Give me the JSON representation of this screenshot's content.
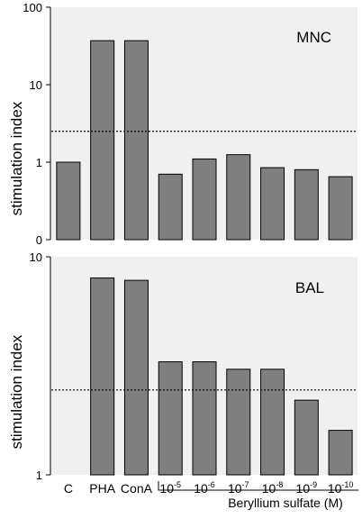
{
  "chart_data": {
    "type": "bar",
    "categories": [
      "C",
      "PHA",
      "ConA",
      "10-5",
      "10-6",
      "10-7",
      "10-8",
      "10-9",
      "10-10"
    ],
    "category_labels": [
      {
        "base": "C",
        "sup": ""
      },
      {
        "base": "PHA",
        "sup": ""
      },
      {
        "base": "ConA",
        "sup": ""
      },
      {
        "base": "10",
        "sup": "-5"
      },
      {
        "base": "10",
        "sup": "-6"
      },
      {
        "base": "10",
        "sup": "-7"
      },
      {
        "base": "10",
        "sup": "-8"
      },
      {
        "base": "10",
        "sup": "-9"
      },
      {
        "base": "10",
        "sup": "-10"
      }
    ],
    "group_label": "Beryllium sulfate (M)",
    "panels": [
      {
        "panel_label": "MNC",
        "ylabel": "stimulation index",
        "yscale": "log",
        "ylim": [
          0,
          100
        ],
        "yticks": [
          {
            "label": "100",
            "value": 100
          },
          {
            "label": "10",
            "value": 10
          },
          {
            "label": "1",
            "value": 1
          },
          {
            "label": "0",
            "value": 0
          }
        ],
        "values": [
          1.0,
          37,
          37,
          0.7,
          1.1,
          1.25,
          0.85,
          0.8,
          0.65
        ],
        "reference_line": 2.5
      },
      {
        "panel_label": "BAL",
        "ylabel": "stimulation index",
        "yscale": "log",
        "ylim": [
          1,
          10
        ],
        "yticks": [
          {
            "label": "10",
            "value": 10
          },
          {
            "label": "1",
            "value": 1
          }
        ],
        "values": [
          null,
          8.0,
          7.8,
          3.3,
          3.3,
          3.05,
          3.05,
          2.2,
          1.6
        ],
        "reference_line": 2.45
      }
    ],
    "colors": {
      "bar_fill": "#7f7f7f",
      "bar_stroke": "#000000",
      "plot_background": "#f0f0f0",
      "reference_line": "#000000"
    },
    "grid": false,
    "legend": "none"
  }
}
